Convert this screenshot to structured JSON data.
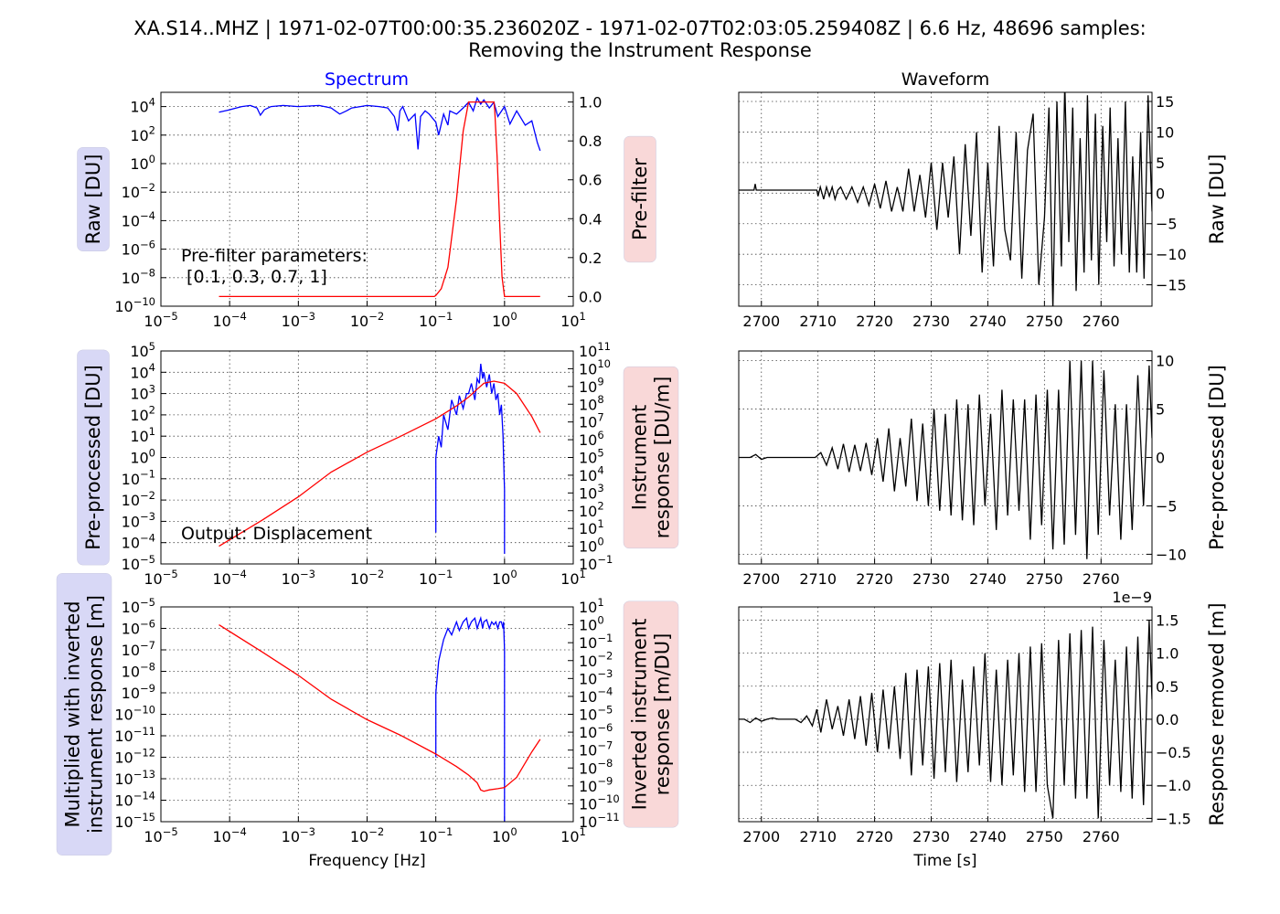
{
  "title": {
    "line1": "XA.S14..MHZ | 1971-02-07T00:00:35.236020Z - 1971-02-07T02:03:05.259408Z | 6.6 Hz, 48696 samples:",
    "line2": "Removing the Instrument Response"
  },
  "column_titles": {
    "spectrum": "Spectrum",
    "waveform": "Waveform"
  },
  "colors": {
    "spectrum_line": "#0000ff",
    "response_line": "#ff0000",
    "waveform_line": "#000000",
    "left_label_box": "#d8d8f6",
    "right_label_box": "#f9d8d8",
    "grid": "#444444"
  },
  "chart_data": [
    {
      "type": "line",
      "panel": "raw-spectrum",
      "ylabel": "Raw [DU]",
      "right_ylabel": "Pre-filter",
      "annotation": "Pre-filter parameters:\n [0.1, 0.3, 0.7, 1]",
      "xscale": "log",
      "xlim": [
        1e-05,
        10
      ],
      "yscale": "log",
      "ylim": [
        1e-10,
        100000.0
      ],
      "right_yscale": "linear",
      "right_ylim": [
        -0.05,
        1.05
      ],
      "xticks": [
        "10-5",
        "10-4",
        "10-3",
        "10-2",
        "10-1",
        "100",
        "101"
      ],
      "yticks": [
        "10-10",
        "10-8",
        "10-6",
        "10-4",
        "10-2",
        "100",
        "102",
        "104"
      ],
      "right_yticks": [
        "0.0",
        "0.2",
        "0.4",
        "0.6",
        "0.8",
        "1.0"
      ],
      "series": [
        {
          "axis": "left",
          "color": "#0000ff",
          "x": [
            7e-05,
            0.0001,
            0.00015,
            0.0002,
            0.00025,
            0.00028,
            0.00032,
            0.0004,
            0.0006,
            0.001,
            0.002,
            0.003,
            0.004,
            0.005,
            0.006,
            0.008,
            0.01,
            0.015,
            0.02,
            0.025,
            0.028,
            0.03,
            0.033,
            0.04,
            0.05,
            0.055,
            0.06,
            0.07,
            0.08,
            0.1,
            0.11,
            0.13,
            0.15,
            0.16,
            0.2,
            0.25,
            0.3,
            0.35,
            0.4,
            0.45,
            0.5,
            0.6,
            0.7,
            0.8,
            1,
            1.2,
            1.5,
            2,
            2.5,
            3,
            3.3
          ],
          "y": [
            4000,
            6000,
            10000,
            12000,
            8000,
            2500,
            6000,
            10000,
            12000,
            10000,
            12000,
            8000,
            3000,
            5000,
            8000,
            10000,
            12000,
            10000,
            8000,
            2000,
            200,
            5000,
            10000,
            1000,
            3000,
            10,
            2000,
            5000,
            3000,
            800,
            100,
            3000,
            500,
            5000,
            3000,
            8000,
            20000,
            5000,
            40000,
            15000,
            30000,
            8000,
            20000,
            2000,
            10000,
            600,
            5000,
            500,
            1000,
            30,
            8
          ]
        },
        {
          "axis": "right",
          "color": "#ff0000",
          "x": [
            7e-05,
            0.095,
            0.1,
            0.12,
            0.15,
            0.2,
            0.25,
            0.3,
            0.7,
            0.72,
            0.78,
            0.85,
            0.92,
            1.0,
            3.3
          ],
          "y": [
            0,
            0,
            0.005,
            0.04,
            0.15,
            0.5,
            0.85,
            1.0,
            1.0,
            0.96,
            0.72,
            0.38,
            0.1,
            0,
            0
          ]
        }
      ]
    },
    {
      "type": "line",
      "panel": "preprocessed-spectrum",
      "ylabel": "Pre-processed [DU]",
      "right_ylabel": "Instrument\nresponse [DU/m]",
      "annotation": "Output: Displacement",
      "xscale": "log",
      "xlim": [
        1e-05,
        10
      ],
      "yscale": "log",
      "ylim": [
        1e-05,
        100000.0
      ],
      "right_yscale": "log",
      "right_ylim": [
        0.1,
        100000000000.0
      ],
      "xticks": [
        "10-5",
        "10-4",
        "10-3",
        "10-2",
        "10-1",
        "100",
        "101"
      ],
      "yticks": [
        "10-5",
        "10-4",
        "10-3",
        "10-2",
        "10-1",
        "100",
        "101",
        "102",
        "103",
        "104",
        "105"
      ],
      "right_yticks": [
        "10-1",
        "100",
        "101",
        "102",
        "103",
        "104",
        "105",
        "106",
        "107",
        "108",
        "109",
        "1010",
        "1011"
      ],
      "series": [
        {
          "axis": "left",
          "color": "#0000ff",
          "x": [
            0.1,
            0.1,
            0.11,
            0.12,
            0.13,
            0.15,
            0.17,
            0.2,
            0.22,
            0.25,
            0.28,
            0.3,
            0.33,
            0.37,
            0.4,
            0.43,
            0.45,
            0.48,
            0.5,
            0.55,
            0.6,
            0.65,
            0.7,
            0.75,
            0.8,
            0.85,
            0.9,
            0.95,
            0.97,
            1.0,
            1.0
          ],
          "y": [
            0.0003,
            1,
            10,
            3,
            100,
            20,
            500,
            100,
            800,
            200,
            1000,
            1000,
            3000,
            500,
            5000,
            3000,
            25000,
            5000,
            10000,
            2000,
            8000,
            1000,
            3000,
            500,
            1000,
            100,
            300,
            10,
            1,
            0.03,
            3e-05
          ]
        },
        {
          "axis": "right",
          "color": "#ff0000",
          "x": [
            7e-05,
            0.0003,
            0.001,
            0.003,
            0.01,
            0.03,
            0.1,
            0.2,
            0.3,
            0.4,
            0.5,
            0.7,
            1.0,
            1.5,
            2.5,
            3.3
          ],
          "y": [
            1,
            30,
            600,
            15000,
            200000,
            1500000,
            15000000,
            80000000,
            250000000,
            700000000,
            1500000000,
            2000000000,
            1500000000,
            400000000,
            20000000,
            2500000
          ]
        }
      ]
    },
    {
      "type": "line",
      "panel": "corrected-spectrum",
      "ylabel": "Multiplied with inverted\ninstrument response [m]",
      "right_ylabel": "Inverted instrument\nresponse [m/DU]",
      "xlabel": "Frequency [Hz]",
      "xscale": "log",
      "xlim": [
        1e-05,
        10
      ],
      "yscale": "log",
      "ylim": [
        1e-15,
        1e-05
      ],
      "right_yscale": "log",
      "right_ylim": [
        1e-11,
        10
      ],
      "xticks": [
        "10-5",
        "10-4",
        "10-3",
        "10-2",
        "10-1",
        "100",
        "101"
      ],
      "yticks": [
        "10-15",
        "10-14",
        "10-13",
        "10-12",
        "10-11",
        "10-10",
        "10-9",
        "10-8",
        "10-7",
        "10-6",
        "10-5"
      ],
      "right_yticks": [
        "10-11",
        "10-10",
        "10-9",
        "10-8",
        "10-7",
        "10-6",
        "10-5",
        "10-4",
        "10-3",
        "10-2",
        "10-1",
        "100",
        "101"
      ],
      "series": [
        {
          "axis": "left",
          "color": "#0000ff",
          "x": [
            0.1,
            0.1,
            0.11,
            0.12,
            0.13,
            0.15,
            0.17,
            0.2,
            0.22,
            0.25,
            0.28,
            0.3,
            0.33,
            0.37,
            0.4,
            0.43,
            0.45,
            0.48,
            0.5,
            0.55,
            0.6,
            0.65,
            0.7,
            0.75,
            0.8,
            0.85,
            0.9,
            0.95,
            0.97,
            1.0,
            1.0
          ],
          "y": [
            1e-12,
            1e-09,
            3e-08,
            1e-07,
            3e-07,
            1e-06,
            5e-07,
            2e-06,
            8e-07,
            2e-06,
            3e-06,
            1e-06,
            2e-06,
            3e-06,
            1e-06,
            2e-06,
            3e-06,
            1e-06,
            2e-06,
            2.5e-06,
            1e-06,
            2e-06,
            1.5e-06,
            2e-06,
            1e-06,
            2e-06,
            2e-06,
            1e-06,
            2e-06,
            1e-07,
            1e-15
          ]
        },
        {
          "axis": "right",
          "color": "#ff0000",
          "x": [
            7e-05,
            0.0003,
            0.001,
            0.003,
            0.01,
            0.03,
            0.1,
            0.2,
            0.3,
            0.4,
            0.45,
            0.5,
            0.6,
            0.8,
            1.0,
            1.5,
            2.5,
            3.3
          ],
          "y": [
            1,
            0.03,
            0.0015,
            7e-05,
            5e-06,
            7e-07,
            6e-08,
            1.2e-08,
            4e-09,
            1.5e-09,
            6e-10,
            5e-10,
            6e-10,
            7e-10,
            8e-10,
            3e-09,
            8e-08,
            4e-07
          ]
        }
      ]
    },
    {
      "type": "line",
      "panel": "raw-waveform",
      "ylabel": "Raw [DU]",
      "xlim": [
        2696,
        2769
      ],
      "ylim": [
        -18.5,
        16.5
      ],
      "xticks": [
        "2700",
        "2710",
        "2720",
        "2730",
        "2740",
        "2750",
        "2760"
      ],
      "yticks": [
        "−15",
        "−10",
        "−5",
        "0",
        "5",
        "10",
        "15"
      ],
      "series": [
        {
          "color": "#000000",
          "x": [
            2696,
            2698.7,
            2698.9,
            2699.1,
            2709.8,
            2710,
            2710.4,
            2711,
            2711.5,
            2712,
            2712.5,
            2713,
            2713.5,
            2714,
            2715,
            2716,
            2717,
            2718,
            2719,
            2720,
            2721,
            2722,
            2723,
            2724,
            2725,
            2726,
            2727,
            2728,
            2729,
            2730,
            2731,
            2732,
            2733,
            2734,
            2735,
            2736,
            2737,
            2738,
            2739,
            2740,
            2741,
            2742,
            2743,
            2744,
            2745,
            2746,
            2747,
            2748,
            2749,
            2750,
            2750.8,
            2751.5,
            2752.2,
            2753,
            2753.6,
            2754.3,
            2755,
            2755.6,
            2756.3,
            2757,
            2757.6,
            2758.3,
            2759,
            2759.6,
            2760.3,
            2761,
            2761.6,
            2762.3,
            2763,
            2763.6,
            2764.3,
            2765,
            2765.6,
            2766.3,
            2767,
            2767.6,
            2768.3,
            2769
          ],
          "y": [
            0.5,
            0.5,
            1.5,
            0.5,
            0.5,
            -0.5,
            1,
            -1,
            1,
            -0.5,
            1,
            -1,
            0.5,
            1,
            -1,
            1,
            -1.5,
            1,
            -2,
            1.5,
            -2.5,
            2,
            -3,
            1,
            -3,
            4,
            -3,
            3,
            -4,
            5,
            -6,
            5,
            -4,
            6,
            -10,
            8,
            -7,
            10,
            -13,
            5,
            -12,
            11,
            -6,
            -11,
            10,
            -14,
            7,
            13,
            -15,
            -4,
            14,
            -19,
            15,
            -12,
            18,
            -8,
            14,
            -16,
            9,
            -13,
            16,
            -11,
            13,
            -15,
            11,
            -8,
            14,
            -12,
            9,
            -10,
            15,
            -13,
            6,
            -13,
            10,
            -14,
            16,
            -3
          ]
        }
      ]
    },
    {
      "type": "line",
      "panel": "preprocessed-waveform",
      "ylabel": "Pre-processed [DU]",
      "xlim": [
        2696,
        2769
      ],
      "ylim": [
        -11,
        11
      ],
      "xticks": [
        "2700",
        "2710",
        "2720",
        "2730",
        "2740",
        "2750",
        "2760"
      ],
      "yticks": [
        "−10",
        "−5",
        "0",
        "5",
        "10"
      ],
      "series": [
        {
          "color": "#000000",
          "x": [
            2696,
            2698,
            2699,
            2700,
            2701,
            2709.5,
            2710.5,
            2711.5,
            2712.5,
            2713.5,
            2714.5,
            2715.5,
            2716.5,
            2717.5,
            2718.5,
            2719.5,
            2720.5,
            2721.5,
            2722.5,
            2723.5,
            2724.5,
            2725.5,
            2726.5,
            2727.5,
            2728.5,
            2729.5,
            2730.5,
            2731.5,
            2732.5,
            2733.5,
            2734.5,
            2735.5,
            2736.5,
            2737.5,
            2738.5,
            2739.5,
            2740.5,
            2741.5,
            2742.5,
            2743.5,
            2744.5,
            2745.5,
            2746.5,
            2747.5,
            2748.5,
            2749.5,
            2750.5,
            2751.5,
            2752.5,
            2753.5,
            2754.5,
            2755.5,
            2756.5,
            2757.5,
            2758.5,
            2759.5,
            2760.5,
            2761.5,
            2762.5,
            2763.5,
            2764.5,
            2765.5,
            2766.5,
            2767.5,
            2768.5,
            2769
          ],
          "y": [
            0,
            0,
            0.3,
            -0.2,
            0,
            0,
            0.5,
            -0.8,
            1,
            -1.2,
            1.4,
            -1.5,
            1.3,
            -1.4,
            1.5,
            -1.8,
            2,
            -2.5,
            3,
            -3.5,
            2,
            -3,
            4,
            -4.5,
            3.5,
            -5,
            5,
            -5.5,
            4.5,
            -6,
            6,
            -6.5,
            5.5,
            -7,
            6.5,
            -5,
            4.5,
            -7.5,
            7,
            -6,
            6,
            -5.5,
            6,
            -8.5,
            6.5,
            -7,
            7,
            -9.5,
            7,
            -9,
            10,
            -8,
            10,
            -10.5,
            10,
            -8,
            9,
            -6,
            5.5,
            -8.5,
            5.5,
            -7.5,
            8.5,
            -5,
            9.5,
            2
          ]
        }
      ]
    },
    {
      "type": "line",
      "panel": "corrected-waveform",
      "ylabel": "Response removed [m]",
      "xlabel": "Time [s]",
      "offset_label": "1e−9",
      "xlim": [
        2696,
        2769
      ],
      "ylim": [
        -1.55,
        1.7
      ],
      "xticks": [
        "2700",
        "2710",
        "2720",
        "2730",
        "2740",
        "2750",
        "2760"
      ],
      "yticks": [
        "−1.5",
        "−1.0",
        "−0.5",
        "0.0",
        "0.5",
        "1.0",
        "1.5"
      ],
      "series": [
        {
          "color": "#000000",
          "x": [
            2696,
            2697,
            2698,
            2699,
            2700,
            2701,
            2702,
            2703,
            2704,
            2705,
            2706,
            2707,
            2708,
            2709,
            2709.8,
            2710.5,
            2711.5,
            2712.5,
            2713.5,
            2714.5,
            2715.5,
            2716.5,
            2717.5,
            2718.5,
            2719.5,
            2720.5,
            2721.5,
            2722.5,
            2723.5,
            2724.5,
            2725.5,
            2726.5,
            2727.5,
            2728.5,
            2729.5,
            2730.5,
            2731.5,
            2732.5,
            2733.5,
            2734.5,
            2735.5,
            2736.5,
            2737.5,
            2738.5,
            2739.5,
            2740.5,
            2741.5,
            2742.5,
            2743.5,
            2744.5,
            2745.5,
            2746.5,
            2747.5,
            2748.5,
            2749.5,
            2750.5,
            2751.5,
            2752.5,
            2753.5,
            2754.5,
            2755.5,
            2756.5,
            2757.5,
            2758.5,
            2759.5,
            2760.5,
            2761.5,
            2762.5,
            2763.5,
            2764.5,
            2765.5,
            2766.5,
            2767.5,
            2768.5,
            2769
          ],
          "y": [
            0,
            0,
            -0.05,
            0.02,
            -0.03,
            0,
            0.02,
            0,
            0,
            0,
            0,
            -0.05,
            0.05,
            -0.1,
            0.15,
            -0.2,
            0.3,
            -0.15,
            0.2,
            -0.25,
            0.3,
            -0.3,
            0.35,
            -0.4,
            0.4,
            -0.5,
            0.45,
            -0.45,
            0.5,
            -0.6,
            0.7,
            -0.85,
            0.75,
            -0.7,
            0.8,
            -0.9,
            0.85,
            -0.8,
            0.9,
            -0.95,
            0.6,
            -0.8,
            0.8,
            -0.7,
            1.0,
            -0.95,
            0.75,
            -1.0,
            0.9,
            -0.85,
            1.0,
            -1.1,
            1.1,
            -1.1,
            1.15,
            -1.0,
            -1.5,
            1.2,
            -1.0,
            1.3,
            -1.2,
            1.35,
            -1.2,
            1.4,
            -1.5,
            1.2,
            -1.0,
            0.9,
            -1.1,
            1.1,
            -1.2,
            1.25,
            -1.3,
            1.5,
            0.3
          ]
        }
      ]
    }
  ]
}
